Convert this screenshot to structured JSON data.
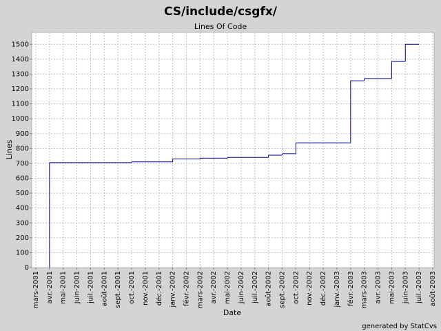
{
  "chart_data": {
    "type": "step",
    "title": "CS/include/csgfx/",
    "subtitle": "Lines Of Code",
    "x_label": "Date",
    "y_label": "Lines",
    "footer": "generated by StatCvs",
    "grid": true,
    "xlim": [
      "2001-03",
      "2003-08"
    ],
    "ylim": [
      0,
      1580
    ],
    "yticks": [
      0,
      100,
      200,
      300,
      400,
      500,
      600,
      700,
      800,
      900,
      1000,
      1100,
      1200,
      1300,
      1400,
      1500
    ],
    "xticks": [
      {
        "value": "2001-03",
        "label": "mars-2001"
      },
      {
        "value": "2001-04",
        "label": "avr.-2001"
      },
      {
        "value": "2001-05",
        "label": "mai-2001"
      },
      {
        "value": "2001-06",
        "label": "juin-2001"
      },
      {
        "value": "2001-07",
        "label": "juil.-2001"
      },
      {
        "value": "2001-08",
        "label": "août-2001"
      },
      {
        "value": "2001-09",
        "label": "sept.-2001"
      },
      {
        "value": "2001-10",
        "label": "oct.-2001"
      },
      {
        "value": "2001-11",
        "label": "nov.-2001"
      },
      {
        "value": "2001-12",
        "label": "déc.-2001"
      },
      {
        "value": "2002-01",
        "label": "janv.-2002"
      },
      {
        "value": "2002-02",
        "label": "févr.-2002"
      },
      {
        "value": "2002-03",
        "label": "mars-2002"
      },
      {
        "value": "2002-04",
        "label": "avr.-2002"
      },
      {
        "value": "2002-05",
        "label": "mai-2002"
      },
      {
        "value": "2002-06",
        "label": "juin-2002"
      },
      {
        "value": "2002-07",
        "label": "juil.-2002"
      },
      {
        "value": "2002-08",
        "label": "août-2002"
      },
      {
        "value": "2002-09",
        "label": "sept.-2002"
      },
      {
        "value": "2002-10",
        "label": "oct.-2002"
      },
      {
        "value": "2002-11",
        "label": "nov.-2002"
      },
      {
        "value": "2002-12",
        "label": "déc.-2002"
      },
      {
        "value": "2003-01",
        "label": "janv.-2003"
      },
      {
        "value": "2003-02",
        "label": "févr.-2003"
      },
      {
        "value": "2003-03",
        "label": "mars-2003"
      },
      {
        "value": "2003-04",
        "label": "avr.-2003"
      },
      {
        "value": "2003-05",
        "label": "mai-2003"
      },
      {
        "value": "2003-06",
        "label": "juin-2003"
      },
      {
        "value": "2003-07",
        "label": "juil.-2003"
      },
      {
        "value": "2003-08",
        "label": "août-2003"
      }
    ],
    "series": [
      {
        "color": "#000099",
        "x": [
          "2001-04",
          "2001-04",
          "2001-10",
          "2002-01",
          "2002-03",
          "2002-05",
          "2002-08",
          "2002-09",
          "2002-10",
          "2003-02",
          "2003-02",
          "2003-02",
          "2003-03",
          "2003-03",
          "2003-05",
          "2003-05",
          "2003-06",
          "2003-07"
        ],
        "values": [
          0,
          705,
          710,
          730,
          735,
          740,
          755,
          765,
          838,
          1150,
          1190,
          1255,
          1260,
          1270,
          1280,
          1385,
          1500,
          1500
        ]
      }
    ]
  }
}
